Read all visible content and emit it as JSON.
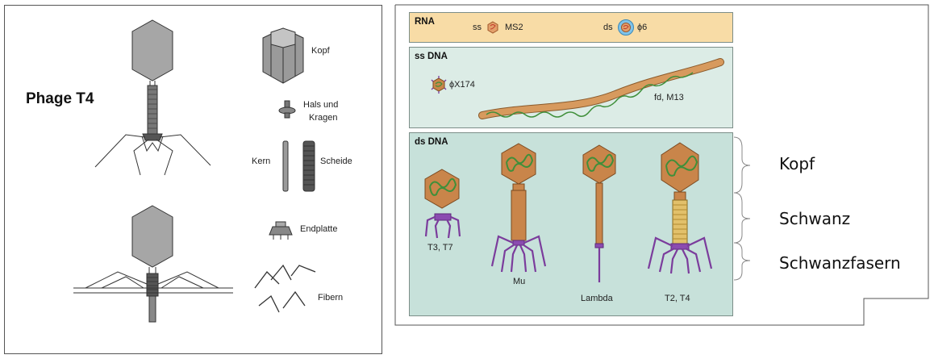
{
  "left": {
    "title": "Phage T4",
    "labels": {
      "kopf": "Kopf",
      "hals": "Hals und",
      "kragen": "Kragen",
      "kern": "Kern",
      "scheide": "Scheide",
      "endplatte": "Endplatte",
      "fibern": "Fibern"
    }
  },
  "right": {
    "rna": {
      "title": "RNA",
      "ss": "ss",
      "ms2": "MS2",
      "ds": "ds",
      "phi6": "ϕ6"
    },
    "ssdna": {
      "title": "ss DNA",
      "phix": "ϕX174",
      "fd": "fd, M13"
    },
    "dsdna": {
      "title": "ds DNA",
      "t3": "T3, T7",
      "mu": "Mu",
      "lambda": "Lambda",
      "t2": "T2, T4"
    },
    "annotations": {
      "kopf": "Kopf",
      "schwanz": "Schwanz",
      "fasern": "Schwanzfasern"
    }
  },
  "colors": {
    "capsid": "#c9854a",
    "dna": "#3f8f3a",
    "tail": "#d7a24a",
    "fiber": "#7b3c9c",
    "rna_bg": "#f8dca6",
    "dna_bg": "#c7e1da"
  }
}
